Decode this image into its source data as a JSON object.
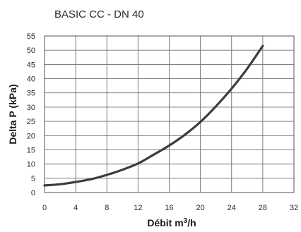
{
  "chart_data": {
    "type": "line",
    "title": "BASIC CC - DN 40",
    "xlabel": "Débit m",
    "xlabel_sup": "3",
    "xlabel_suffix": "/h",
    "ylabel": "Delta P (kPa)",
    "xlim": [
      0,
      32
    ],
    "ylim": [
      0,
      55
    ],
    "x_ticks": [
      "0",
      "4",
      "8",
      "12",
      "16",
      "20",
      "24",
      "28",
      "32"
    ],
    "y_ticks": [
      "0",
      "5",
      "10",
      "15",
      "20",
      "25",
      "30",
      "35",
      "40",
      "45",
      "50",
      "55"
    ],
    "grid": true,
    "series": [
      {
        "color": "#3d3d3d",
        "x": [
          0,
          2,
          4,
          6,
          8,
          10,
          12,
          14,
          16,
          18,
          20,
          22,
          24,
          26,
          28
        ],
        "y": [
          2.5,
          2.9,
          3.7,
          4.7,
          6.2,
          8.0,
          10.2,
          13.3,
          16.5,
          20.3,
          24.8,
          30.3,
          36.5,
          43.5,
          51.5
        ]
      }
    ]
  }
}
